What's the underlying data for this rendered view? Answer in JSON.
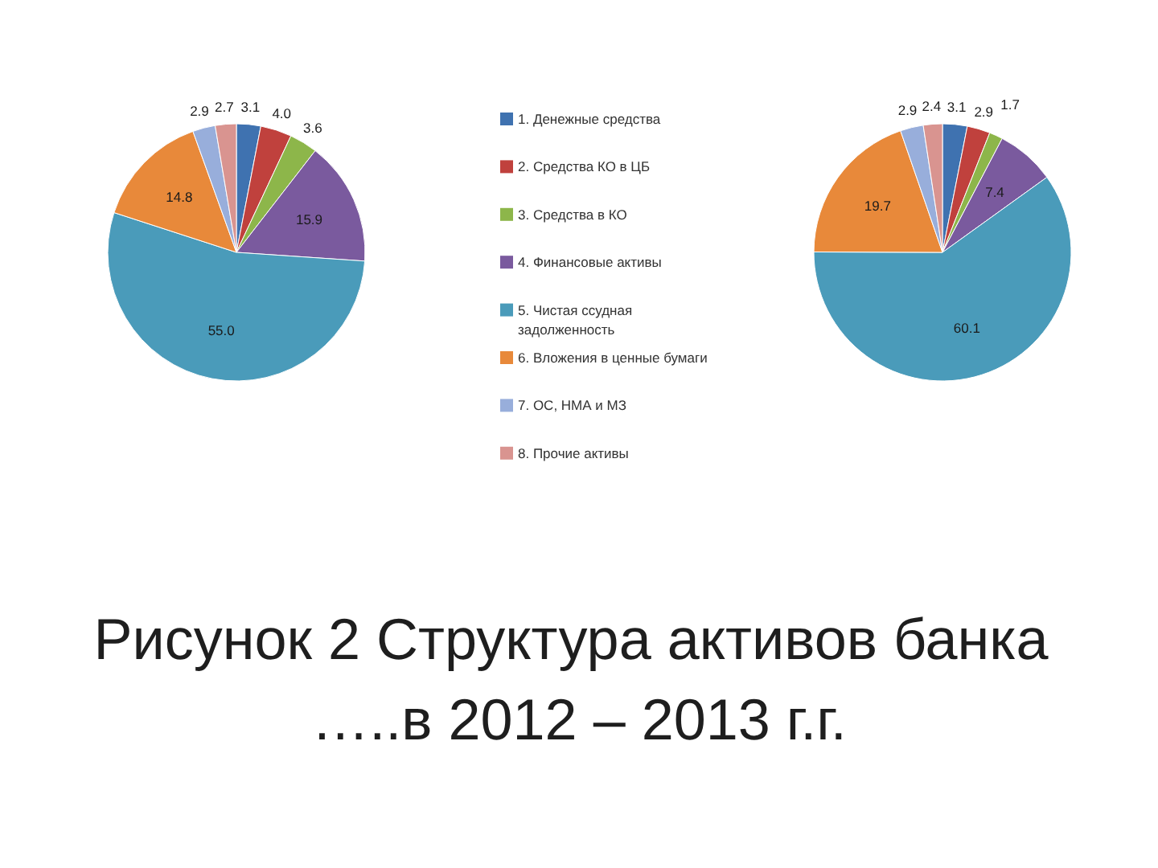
{
  "chart_data": {
    "type": "pie",
    "title": "Рисунок 2 Структура активов банка …..в 2012 – 2013 г.г.",
    "categories": [
      "1. Денежные средства",
      "2. Средства КО в ЦБ",
      "3. Средства в КО",
      "4. Финансовые активы",
      "5. Чистая ссудная задолженность",
      "6. Вложения в ценные бумаги",
      "7. ОС, НМА и МЗ",
      "8. Прочие активы"
    ],
    "colors": [
      "#3f72b0",
      "#c0413d",
      "#8db64a",
      "#7a5a9e",
      "#4a9bba",
      "#e8893a",
      "#98aedb",
      "#d99490"
    ],
    "series": [
      {
        "values": [
          3.1,
          4.0,
          3.6,
          15.9,
          55.0,
          14.8,
          2.9,
          2.7
        ],
        "value_labels": [
          "3.1",
          "4.0",
          "3.6",
          "15.9",
          "55.0",
          "14.8",
          "2.9",
          "2.7"
        ]
      },
      {
        "values": [
          3.1,
          2.9,
          1.7,
          7.4,
          60.1,
          19.7,
          2.9,
          2.4
        ],
        "value_labels": [
          "3.1",
          "2.9",
          "1.7",
          "7.4",
          "60.1",
          "19.7",
          "2.9",
          "2.4"
        ]
      }
    ],
    "legend": "right"
  }
}
